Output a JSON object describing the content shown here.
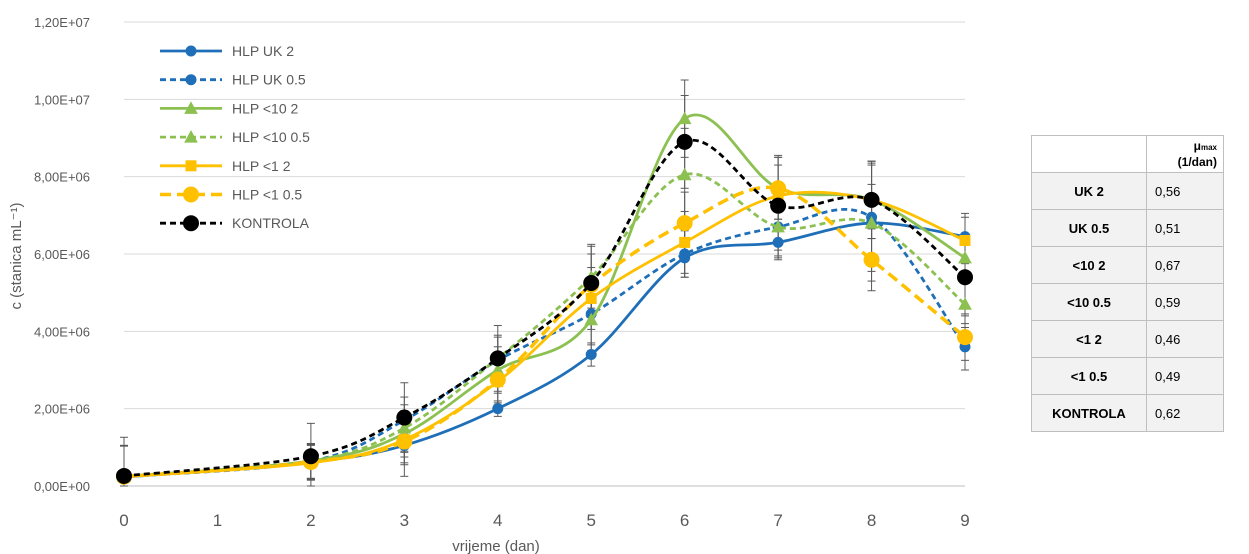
{
  "chart_data": {
    "type": "line",
    "x": [
      0,
      2,
      3,
      4,
      5,
      6,
      7,
      8,
      9
    ],
    "xlabel": "vrijeme (dan)",
    "ylabel": "c (stanica mL⁻¹)",
    "xlim": [
      0,
      9
    ],
    "ylim": [
      0,
      12000000
    ],
    "x_ticks": [
      "0",
      "1",
      "2",
      "3",
      "4",
      "5",
      "6",
      "7",
      "8",
      "9"
    ],
    "y_ticks": [
      "0,00E+00",
      "2,00E+06",
      "4,00E+06",
      "6,00E+06",
      "8,00E+06",
      "1,00E+07",
      "1,20E+07"
    ],
    "grid": "horizontal",
    "legend_position": "top-left",
    "series": [
      {
        "name": "HLP UK 2",
        "color": "#1f6fb8",
        "dash": "solid",
        "marker": "circle",
        "values": [
          230000,
          620000,
          1050000,
          2000000,
          3400000,
          5900000,
          6300000,
          6800000,
          6450000
        ],
        "errors": [
          800000,
          450000,
          800000,
          200000,
          300000,
          500000,
          450000,
          1500000,
          600000
        ]
      },
      {
        "name": "HLP UK 0.5",
        "color": "#1f6fb8",
        "dash": "dashed",
        "marker": "circle",
        "values": [
          240000,
          640000,
          1700000,
          3250000,
          4450000,
          6000000,
          6700000,
          6950000,
          3600000
        ],
        "errors": [
          800000,
          450000,
          600000,
          600000,
          800000,
          600000,
          600000,
          1400000,
          600000
        ]
      },
      {
        "name": "HLP <10 2",
        "color": "#8cc152",
        "dash": "solid",
        "marker": "triangle",
        "values": [
          250000,
          650000,
          1350000,
          3000000,
          4300000,
          9500000,
          7700000,
          7400000,
          5900000
        ],
        "errors": [
          800000,
          450000,
          600000,
          600000,
          800000,
          1000000,
          800000,
          1000000,
          600000
        ]
      },
      {
        "name": "HLP <10 0.5",
        "color": "#8cc152",
        "dash": "dashed",
        "marker": "triangle",
        "values": [
          250000,
          640000,
          1500000,
          3300000,
          5400000,
          8050000,
          6700000,
          6800000,
          4700000
        ],
        "errors": [
          800000,
          450000,
          600000,
          600000,
          800000,
          1200000,
          800000,
          1000000,
          600000
        ]
      },
      {
        "name": "HLP <1 2",
        "color": "#ffc000",
        "dash": "solid",
        "marker": "square",
        "values": [
          240000,
          600000,
          1200000,
          2700000,
          4850000,
          6300000,
          7500000,
          7400000,
          6350000
        ],
        "errors": [
          800000,
          450000,
          600000,
          600000,
          800000,
          800000,
          800000,
          1000000,
          600000
        ]
      },
      {
        "name": "HLP <1 0.5",
        "color": "#ffc000",
        "dash": "bigdash",
        "marker": "circle-big",
        "values": [
          240000,
          620000,
          1150000,
          2750000,
          5200000,
          6800000,
          7700000,
          5850000,
          3850000
        ],
        "errors": [
          800000,
          450000,
          600000,
          600000,
          800000,
          800000,
          800000,
          800000,
          600000
        ]
      },
      {
        "name": "KONTROLA",
        "color": "#000000",
        "dash": "dashed",
        "marker": "circle-big",
        "values": [
          260000,
          770000,
          1770000,
          3300000,
          5250000,
          8900000,
          7250000,
          7400000,
          5400000
        ],
        "errors": [
          1000000,
          850000,
          900000,
          850000,
          1000000,
          1200000,
          1300000,
          1000000,
          1000000
        ]
      }
    ]
  },
  "rate_table": {
    "header_symbol": "μ",
    "header_sub": "max",
    "header_unit": "(1/dan)",
    "rows": [
      {
        "name": "UK 2",
        "value": "0,56"
      },
      {
        "name": "UK 0.5",
        "value": "0,51"
      },
      {
        "name": "<10 2",
        "value": "0,67"
      },
      {
        "name": "<10 0.5",
        "value": "0,59"
      },
      {
        "name": "<1 2",
        "value": "0,46"
      },
      {
        "name": "<1 0.5",
        "value": "0,49"
      },
      {
        "name": "KONTROLA",
        "value": "0,62"
      }
    ]
  }
}
